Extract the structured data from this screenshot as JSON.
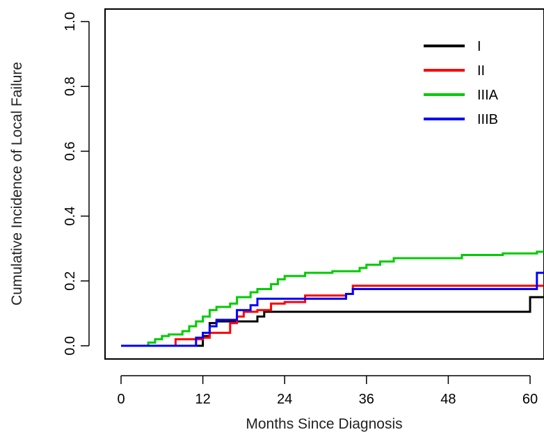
{
  "chart_data": {
    "type": "line",
    "step": true,
    "title": "",
    "xlabel": "Months Since Diagnosis",
    "ylabel": "Cumulative Incidence of Local Failure",
    "xlim": [
      0,
      62
    ],
    "ylim": [
      0,
      1
    ],
    "xticks": [
      0,
      12,
      24,
      36,
      48,
      60
    ],
    "yticks": [
      0.0,
      0.2,
      0.4,
      0.6,
      0.8,
      1.0
    ],
    "ytick_labels": [
      "0.0",
      "0.2",
      "0.4",
      "0.6",
      "0.8",
      "1.0"
    ],
    "grid": false,
    "legend_position": "top-right",
    "series": [
      {
        "name": "I",
        "color": "#000000",
        "x": [
          0,
          10,
          12,
          13,
          14,
          18,
          20,
          21,
          60,
          62
        ],
        "y": [
          0,
          0,
          0.03,
          0.07,
          0.075,
          0.075,
          0.09,
          0.105,
          0.15,
          0.15
        ]
      },
      {
        "name": "II",
        "color": "#ff0000",
        "x": [
          0,
          8,
          11,
          12,
          13,
          16,
          17,
          18,
          20,
          22,
          24,
          27,
          33,
          34,
          62
        ],
        "y": [
          0,
          0.02,
          0.02,
          0.025,
          0.04,
          0.07,
          0.09,
          0.105,
          0.11,
          0.13,
          0.135,
          0.155,
          0.16,
          0.185,
          0.185
        ]
      },
      {
        "name": "IIIA",
        "color": "#00cc00",
        "x": [
          0,
          4,
          5,
          6,
          7,
          9,
          10,
          11,
          12,
          13,
          14,
          16,
          17,
          19,
          20,
          22,
          23,
          24,
          27,
          31,
          35,
          36,
          38,
          40,
          46,
          50,
          56,
          61,
          62
        ],
        "y": [
          0,
          0.01,
          0.02,
          0.03,
          0.035,
          0.045,
          0.06,
          0.075,
          0.09,
          0.11,
          0.12,
          0.13,
          0.15,
          0.165,
          0.175,
          0.19,
          0.205,
          0.215,
          0.225,
          0.23,
          0.24,
          0.25,
          0.26,
          0.27,
          0.27,
          0.28,
          0.285,
          0.29,
          0.29
        ]
      },
      {
        "name": "IIIB",
        "color": "#0000ff",
        "x": [
          0,
          11,
          12,
          13,
          14,
          17,
          19,
          20,
          23,
          27,
          33,
          34,
          36,
          60,
          61,
          62
        ],
        "y": [
          0,
          0.025,
          0.04,
          0.06,
          0.08,
          0.11,
          0.125,
          0.145,
          0.145,
          0.145,
          0.16,
          0.175,
          0.175,
          0.175,
          0.225,
          0.225
        ]
      }
    ]
  }
}
